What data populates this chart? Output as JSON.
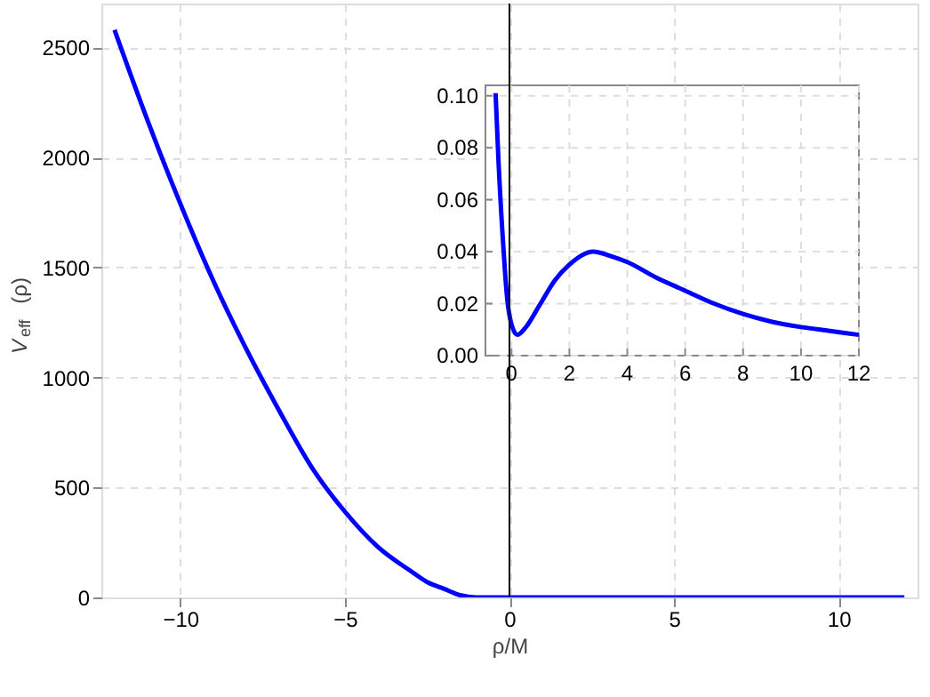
{
  "chart_data": [
    {
      "type": "line",
      "xlabel": "ρ/M",
      "ylabel": "V$_{eff}$(ρ)",
      "xlim": [
        -12.4,
        12.4
      ],
      "ylim": [
        0,
        2700
      ],
      "xticks": [
        -10,
        -5,
        0,
        5,
        10
      ],
      "yticks": [
        0,
        500,
        {
          "value": 1000,
          "label": "1000"
        },
        {
          "value": 1500,
          "label": "1500"
        },
        {
          "value": 2000,
          "label": "2000"
        },
        {
          "value": 2500,
          "label": "2500"
        }
      ],
      "grid": true,
      "ref_lines": [
        {
          "axis": "x",
          "value": 0,
          "color": "#000000"
        }
      ],
      "series": [
        {
          "color": "#0000ff",
          "x": [
            -12,
            -11,
            -10,
            -9,
            -8,
            -7,
            -6,
            -5,
            -4,
            -3,
            -2.5,
            -2,
            -1.5,
            -1,
            -0.5,
            0,
            12
          ],
          "values": [
            2580,
            2170,
            1790,
            1440,
            1130,
            850,
            590,
            390,
            230,
            120,
            70,
            40,
            10,
            0,
            0,
            0,
            0
          ]
        }
      ]
    },
    {
      "type": "line",
      "xlim": [
        -0.9,
        12
      ],
      "ylim": [
        0,
        0.104
      ],
      "xticks": [
        0,
        2,
        4,
        6,
        8,
        10,
        12
      ],
      "yticks": [
        {
          "value": 0,
          "label": "0.00"
        },
        {
          "value": 0.02,
          "label": "0.02"
        },
        {
          "value": 0.04,
          "label": "0.04"
        },
        {
          "value": 0.06,
          "label": "0.06"
        },
        {
          "value": 0.08,
          "label": "0.08"
        },
        {
          "value": 0.1,
          "label": "0.10"
        }
      ],
      "grid": true,
      "series": [
        {
          "color": "#0000ff",
          "x": [
            -0.55,
            -0.45,
            -0.3,
            -0.15,
            0,
            0.2,
            0.5,
            1,
            1.5,
            2,
            2.5,
            2.8,
            3.5,
            4,
            5,
            6,
            7,
            8,
            9,
            10,
            11,
            12
          ],
          "values": [
            0.101,
            0.075,
            0.045,
            0.022,
            0.012,
            0.008,
            0.011,
            0.02,
            0.029,
            0.035,
            0.039,
            0.04,
            0.038,
            0.036,
            0.03,
            0.025,
            0.02,
            0.016,
            0.013,
            0.011,
            0.0095,
            0.008
          ]
        }
      ]
    }
  ]
}
